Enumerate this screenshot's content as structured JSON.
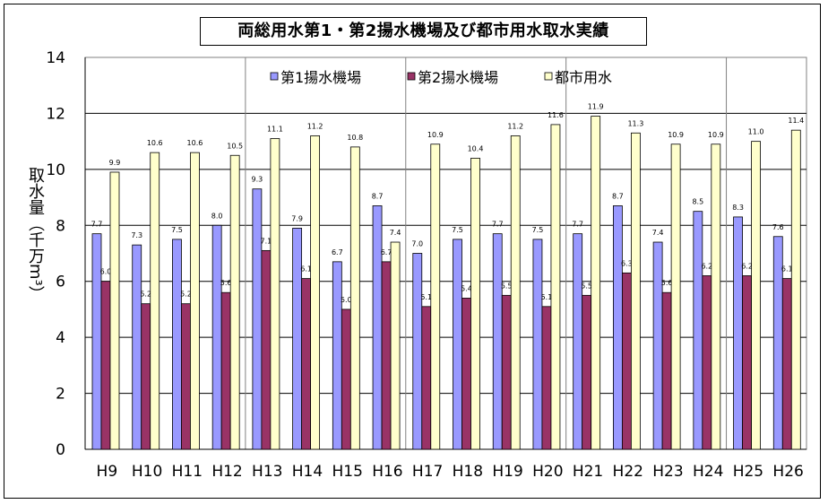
{
  "chart_data": {
    "type": "bar",
    "title": "両総用水第1・第2揚水機場及び都市用水取水実績",
    "ylabel": "取水量（千万m³）",
    "ylim": [
      0,
      14
    ],
    "yticks": [
      0,
      2,
      4,
      6,
      8,
      10,
      12,
      14
    ],
    "grid": true,
    "legend_position": "top",
    "categories": [
      "H9",
      "H10",
      "H11",
      "H12",
      "H13",
      "H14",
      "H15",
      "H16",
      "H17",
      "H18",
      "H19",
      "H20",
      "H21",
      "H22",
      "H23",
      "H24",
      "H25",
      "H26"
    ],
    "series": [
      {
        "name": "第1揚水機場",
        "color": "#9999ff",
        "values": [
          7.7,
          7.3,
          7.5,
          8.0,
          9.3,
          7.9,
          6.7,
          8.7,
          7.0,
          7.5,
          7.7,
          7.5,
          7.7,
          8.7,
          7.4,
          8.5,
          8.3,
          7.6
        ]
      },
      {
        "name": "第2揚水機場",
        "color": "#993366",
        "values": [
          6.0,
          5.2,
          5.2,
          5.6,
          7.1,
          6.1,
          5.0,
          6.7,
          5.1,
          5.4,
          5.5,
          5.1,
          5.5,
          6.3,
          5.6,
          6.2,
          6.2,
          6.1
        ]
      },
      {
        "name": "都市用水",
        "color": "#ffffcc",
        "values": [
          9.9,
          10.6,
          10.6,
          10.5,
          11.1,
          11.2,
          10.8,
          7.4,
          10.9,
          10.4,
          11.2,
          11.6,
          11.9,
          11.3,
          10.9,
          10.9,
          11.0,
          11.4
        ]
      }
    ]
  }
}
